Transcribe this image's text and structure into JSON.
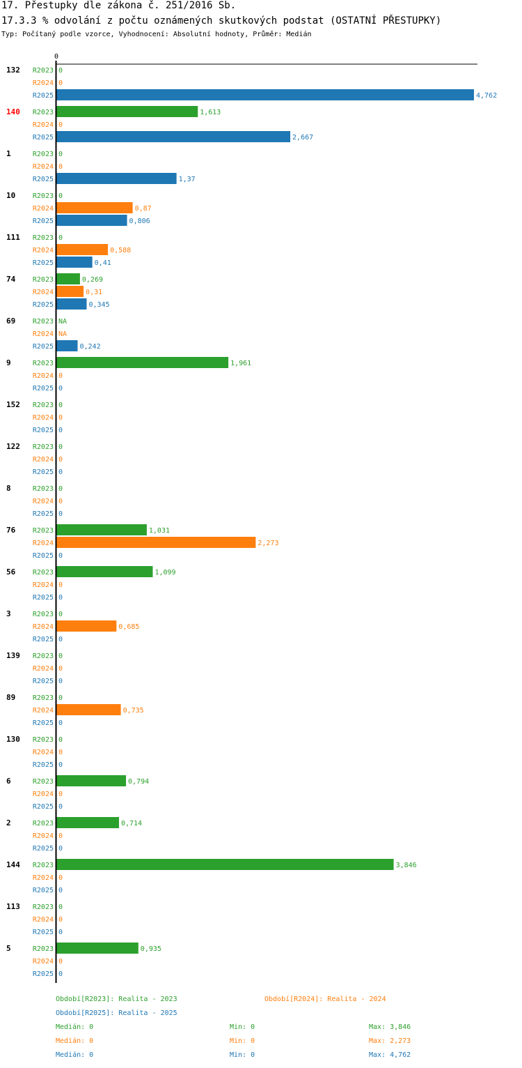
{
  "header": {
    "title": "17. Přestupky dle zákona č. 251/2016 Sb.",
    "subtitle": "17.3.3 % odvolání z počtu oznámených skutkových podstat (OSTATNÍ PŘESTUPKY)",
    "info": "Typ: Počítaný podle vzorce, Vyhodnocení: Absolutní hodnoty, Průměr: Medián"
  },
  "chart_data": {
    "type": "bar",
    "orientation": "horizontal",
    "axis_zero_label": "0",
    "xlim": [
      0,
      4.762
    ],
    "series": [
      {
        "name": "R2023",
        "color": "#2ca02c"
      },
      {
        "name": "R2024",
        "color": "#ff7f0e"
      },
      {
        "name": "R2025",
        "color": "#1f77b4"
      }
    ],
    "groups": [
      {
        "label": "132",
        "highlight": false,
        "values": [
          "0",
          "0",
          "4,762"
        ]
      },
      {
        "label": "140",
        "highlight": true,
        "values": [
          "1,613",
          "0",
          "2,667"
        ]
      },
      {
        "label": "1",
        "highlight": false,
        "values": [
          "0",
          "0",
          "1,37"
        ]
      },
      {
        "label": "10",
        "highlight": false,
        "values": [
          "0",
          "0,87",
          "0,806"
        ]
      },
      {
        "label": "111",
        "highlight": false,
        "values": [
          "0",
          "0,588",
          "0,41"
        ]
      },
      {
        "label": "74",
        "highlight": false,
        "values": [
          "0,269",
          "0,31",
          "0,345"
        ]
      },
      {
        "label": "69",
        "highlight": false,
        "values": [
          "NA",
          "NA",
          "0,242"
        ]
      },
      {
        "label": "9",
        "highlight": false,
        "values": [
          "1,961",
          "0",
          "0"
        ]
      },
      {
        "label": "152",
        "highlight": false,
        "values": [
          "0",
          "0",
          "0"
        ]
      },
      {
        "label": "122",
        "highlight": false,
        "values": [
          "0",
          "0",
          "0"
        ]
      },
      {
        "label": "8",
        "highlight": false,
        "values": [
          "0",
          "0",
          "0"
        ]
      },
      {
        "label": "76",
        "highlight": false,
        "values": [
          "1,031",
          "2,273",
          "0"
        ]
      },
      {
        "label": "56",
        "highlight": false,
        "values": [
          "1,099",
          "0",
          "0"
        ]
      },
      {
        "label": "3",
        "highlight": false,
        "values": [
          "0",
          "0,685",
          "0"
        ]
      },
      {
        "label": "139",
        "highlight": false,
        "values": [
          "0",
          "0",
          "0"
        ]
      },
      {
        "label": "89",
        "highlight": false,
        "values": [
          "0",
          "0,735",
          "0"
        ]
      },
      {
        "label": "130",
        "highlight": false,
        "values": [
          "0",
          "0",
          "0"
        ]
      },
      {
        "label": "6",
        "highlight": false,
        "values": [
          "0,794",
          "0",
          "0"
        ]
      },
      {
        "label": "2",
        "highlight": false,
        "values": [
          "0,714",
          "0",
          "0"
        ]
      },
      {
        "label": "144",
        "highlight": false,
        "values": [
          "3,846",
          "0",
          "0"
        ]
      },
      {
        "label": "113",
        "highlight": false,
        "values": [
          "0",
          "0",
          "0"
        ]
      },
      {
        "label": "5",
        "highlight": false,
        "values": [
          "0,935",
          "0",
          "0"
        ]
      }
    ]
  },
  "legend": {
    "periods": [
      {
        "text": "Období[R2023]: Realita - 2023",
        "color": "#2ca02c"
      },
      {
        "text": "Období[R2024]: Realita - 2024",
        "color": "#ff7f0e"
      },
      {
        "text": "Období[R2025]: Realita - 2025",
        "color": "#1f77b4"
      }
    ],
    "stats": [
      {
        "median": "Medián: 0",
        "min": "Min: 0",
        "max": "Max: 3,846",
        "color": "#2ca02c"
      },
      {
        "median": "Medián: 0",
        "min": "Min: 0",
        "max": "Max: 2,273",
        "color": "#ff7f0e"
      },
      {
        "median": "Medián: 0",
        "min": "Min: 0",
        "max": "Max: 4,762",
        "color": "#1f77b4"
      }
    ]
  }
}
